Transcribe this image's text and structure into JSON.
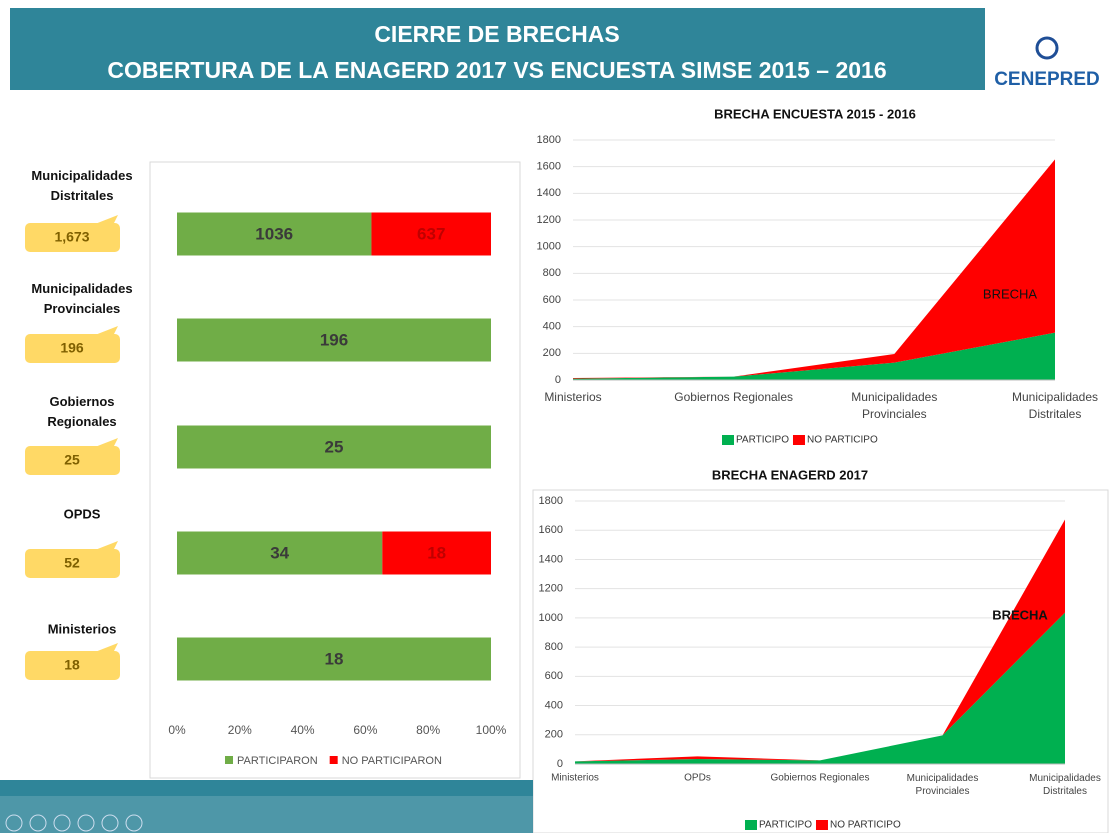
{
  "header": {
    "title": "CIERRE DE BRECHAS",
    "subtitle": "COBERTURA DE LA ENAGERD 2017 VS ENCUESTA SIMSE 2015 – 2016"
  },
  "logo": "CENEPRED",
  "chart_data": [
    {
      "type": "hbar100",
      "categories": [
        "Municipalidades Distritales",
        "Municipalidades Provinciales",
        "Gobiernos Regionales",
        "OPDS",
        "Ministerios"
      ],
      "totals": [
        1673,
        196,
        25,
        52,
        18
      ],
      "totals_labels": [
        "1,673",
        "196",
        "25",
        "52",
        "18"
      ],
      "series": [
        {
          "name": "PARTICIPARON",
          "color": "#70ad47",
          "values": [
            1036,
            196,
            25,
            34,
            18
          ]
        },
        {
          "name": "NO PARTICIPARON",
          "color": "#ff0000",
          "values": [
            637,
            0,
            0,
            18,
            0
          ]
        }
      ],
      "xlim": [
        0,
        100
      ],
      "xticks": [
        {
          "value": 0,
          "label": "0%"
        },
        {
          "value": 20,
          "label": "20%"
        },
        {
          "value": 40,
          "label": "40%"
        },
        {
          "value": 60,
          "label": "60%"
        },
        {
          "value": 80,
          "label": "80%"
        },
        {
          "value": 100,
          "label": "100%"
        }
      ]
    },
    {
      "type": "area",
      "title": "BRECHA  ENCUESTA 2015 - 2016",
      "categories": [
        "Ministerios",
        "Gobiernos Regionales",
        "Municipalidades Provinciales",
        "Municipalidades Distritales"
      ],
      "series": [
        {
          "name": "PARTICIPO",
          "color": "#00b050",
          "values": [
            10,
            25,
            130,
            355
          ]
        },
        {
          "name": "NO PARTICIPO",
          "color": "#ff0000",
          "values": [
            5,
            0,
            65,
            1300
          ]
        }
      ],
      "annotation": "BRECHA",
      "ylim": [
        0,
        1800
      ],
      "yticks": [
        0,
        200,
        400,
        600,
        800,
        1000,
        1200,
        1400,
        1600,
        1800
      ],
      "grid": true
    },
    {
      "type": "area",
      "title": "BRECHA  ENAGERD 2017",
      "categories": [
        "Ministerios",
        "OPDs",
        "Gobiernos Regionales",
        "Municipalidades Provinciales",
        "Municipalidades Distritales"
      ],
      "series": [
        {
          "name": "PARTICIPO",
          "color": "#00b050",
          "values": [
            18,
            34,
            25,
            196,
            1036
          ]
        },
        {
          "name": "NO PARTICIPO",
          "color": "#ff0000",
          "values": [
            0,
            18,
            0,
            0,
            637
          ]
        }
      ],
      "annotation": "BRECHA",
      "ylim": [
        0,
        1800
      ],
      "yticks": [
        0,
        200,
        400,
        600,
        800,
        1000,
        1200,
        1400,
        1600,
        1800
      ],
      "grid": true
    }
  ]
}
